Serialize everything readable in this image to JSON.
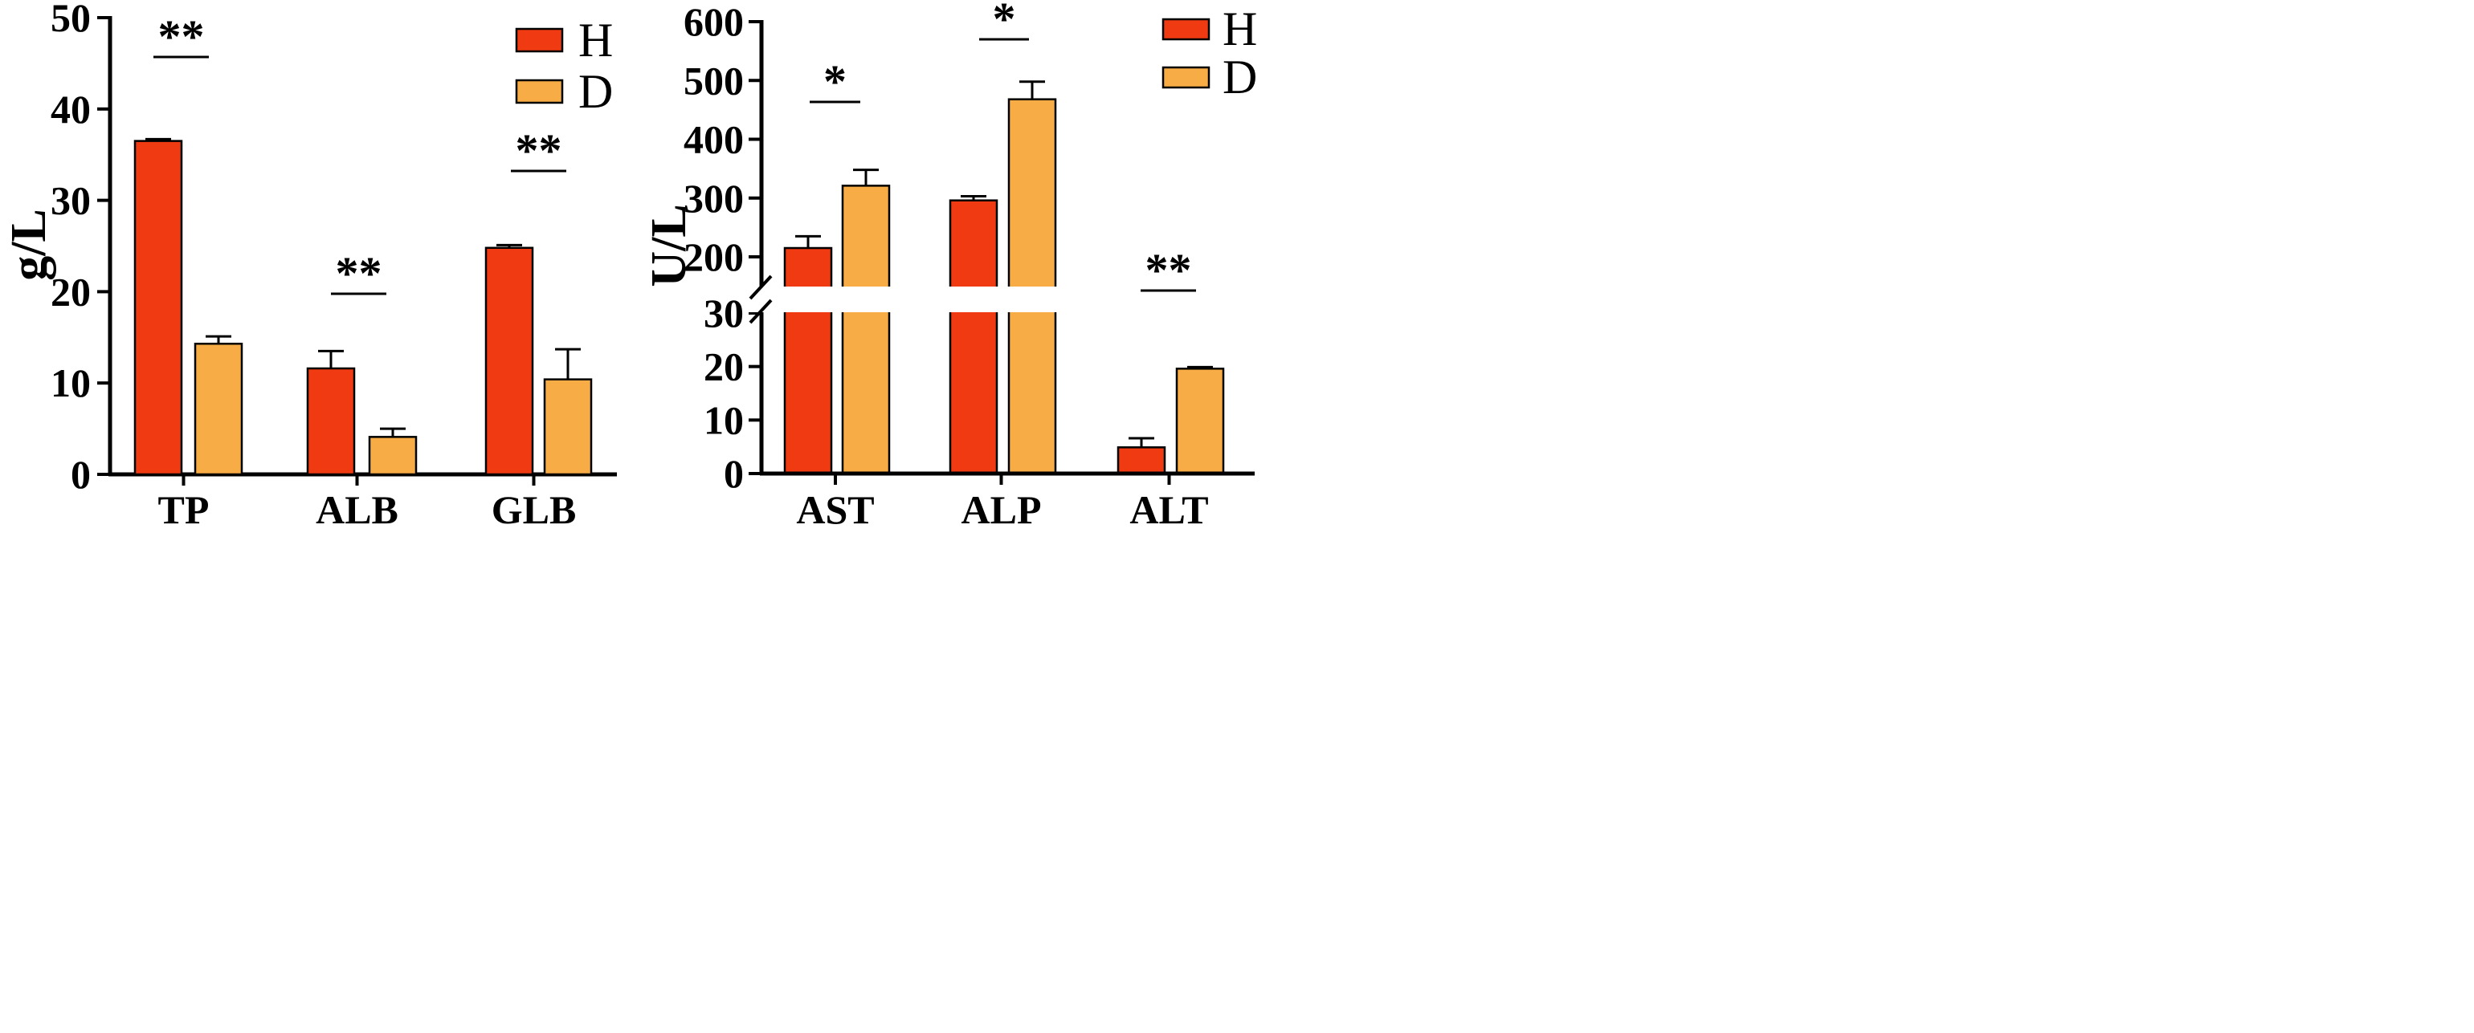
{
  "colors": {
    "H": "#f03a12",
    "D": "#f7ac45",
    "stroke": "#000000"
  },
  "chart_data": [
    {
      "type": "bar",
      "ylabel": "g/L",
      "ylim": [
        0,
        50
      ],
      "yticks": [
        "0",
        "10",
        "20",
        "30",
        "40",
        "50"
      ],
      "categories": [
        "TP",
        "ALB",
        "GLB"
      ],
      "legend": [
        "H",
        "D"
      ],
      "legend_position": "top-right",
      "series": [
        {
          "name": "H",
          "values": [
            36.5,
            11.6,
            24.8
          ],
          "errors": [
            0.2,
            1.9,
            0.3
          ]
        },
        {
          "name": "D",
          "values": [
            14.3,
            4.1,
            10.4
          ],
          "errors": [
            0.8,
            0.9,
            3.3
          ]
        }
      ],
      "significance": [
        "**",
        "**",
        "**"
      ]
    },
    {
      "type": "bar",
      "ylabel": "U/L",
      "y_axis_break": [
        30,
        150
      ],
      "ylim_lower": [
        0,
        30
      ],
      "ylim_upper": [
        150,
        600
      ],
      "yticks_lower": [
        "0",
        "10",
        "20",
        "30"
      ],
      "yticks_upper": [
        "200",
        "300",
        "400",
        "500",
        "600"
      ],
      "categories": [
        "AST",
        "ALP",
        "ALT"
      ],
      "legend": [
        "H",
        "D"
      ],
      "legend_position": "top-right",
      "series": [
        {
          "name": "H",
          "values": [
            215,
            296,
            4.9
          ],
          "errors": [
            20,
            7,
            1.7
          ]
        },
        {
          "name": "D",
          "values": [
            321,
            468,
            19.6
          ],
          "errors": [
            27,
            30,
            0.3
          ]
        }
      ],
      "significance": [
        "*",
        "*",
        "**"
      ]
    }
  ]
}
